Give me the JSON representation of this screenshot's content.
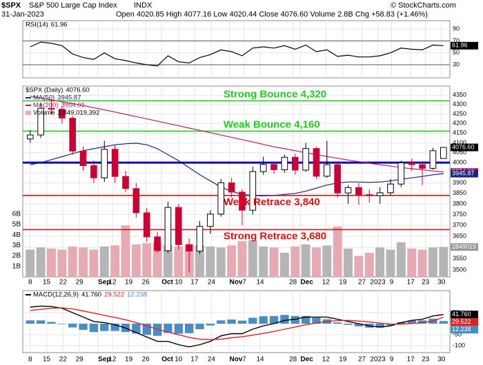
{
  "header": {
    "symbol": "$SPX",
    "name": "S&P 500 Large Cap Index",
    "exchange": "INDX",
    "date": "31-Jan-2023",
    "quote": "Open 4020.85   High 4077.16   Low 4020.44   Close 4076.60   Volume 2.8B   Chg +58.83 (+1.46%)",
    "copyright": "© StockCharts.com"
  },
  "chart_data": [
    {
      "type": "line",
      "grid": true,
      "ylim": [
        8,
        104
      ],
      "yticks": [
        30,
        50,
        70,
        90
      ],
      "ref_lines": [
        30,
        70
      ],
      "series": [
        {
          "name": "RSI(14)",
          "color": "#000000",
          "last_label": "61.96",
          "values": [
            60,
            68,
            66,
            62,
            48,
            42,
            39,
            50,
            40,
            37,
            33,
            30,
            28,
            45,
            35,
            33,
            42,
            47,
            55,
            52,
            45,
            58,
            60,
            58,
            62,
            56,
            63,
            52,
            55,
            44,
            46,
            43,
            43,
            45,
            50,
            58,
            56,
            55,
            63,
            61.96
          ]
        }
      ]
    },
    {
      "type": "candlestick",
      "name": "$SPX (Daily)",
      "last_label": "4076.60",
      "grid": true,
      "log_y": true,
      "up_color": "#000000",
      "down_color": "#cc0033",
      "xlim": [
        -0.7,
        39.6
      ],
      "xticks": [
        {
          "value": 0,
          "label": "8"
        },
        {
          "value": 1.55,
          "label": "15"
        },
        {
          "value": 3.1,
          "label": "22"
        },
        {
          "value": 4.65,
          "label": "29"
        },
        {
          "value": 6.4,
          "label": "Sep"
        },
        {
          "value": 7.76,
          "label": "12"
        },
        {
          "value": 9.3,
          "label": "19"
        },
        {
          "value": 10.9,
          "label": "26"
        },
        {
          "value": 12.4,
          "label": "Oct"
        },
        {
          "value": 14,
          "label": "10"
        },
        {
          "value": 15.5,
          "label": "17"
        },
        {
          "value": 17.1,
          "label": "24"
        },
        {
          "value": 18.8,
          "label": "Nov"
        },
        {
          "value": 20.2,
          "label": "7"
        },
        {
          "value": 21.7,
          "label": "14"
        },
        {
          "value": 24.8,
          "label": "28"
        },
        {
          "value": 25.5,
          "label": "Dec"
        },
        {
          "value": 27.9,
          "label": "12"
        },
        {
          "value": 29.5,
          "label": "19"
        },
        {
          "value": 31.3,
          "label": "27"
        },
        {
          "value": 32.8,
          "label": "2023"
        },
        {
          "value": 34.1,
          "label": "9"
        },
        {
          "value": 35.9,
          "label": "17"
        },
        {
          "value": 37.3,
          "label": "23"
        },
        {
          "value": 38.8,
          "label": "30"
        }
      ],
      "ylim": [
        3470,
        4400
      ],
      "yticks": [
        3500,
        3550,
        3600,
        3650,
        3700,
        3750,
        3800,
        3850,
        3900,
        3950,
        4000,
        4050,
        4100,
        4150,
        4200,
        4250,
        4300,
        4350
      ],
      "open": [
        4120,
        4140,
        4280,
        4275,
        4228,
        4058,
        3985,
        3925,
        4067,
        3932,
        3873,
        3758,
        3647,
        3585,
        3783,
        3612,
        3583,
        3695,
        3752,
        3901,
        3856,
        3770,
        3956,
        3991,
        3965,
        4027,
        3963,
        4071,
        3933,
        3990,
        3852,
        3878,
        3844,
        3839,
        3853,
        3895,
        3999,
        3990,
        3972,
        4020.85
      ],
      "high": [
        4165,
        4305,
        4325,
        4290,
        4240,
        4080,
        4010,
        4110,
        4090,
        3960,
        3900,
        3780,
        3670,
        3810,
        3800,
        3640,
        3720,
        3770,
        3920,
        3925,
        3870,
        3980,
        4030,
        4005,
        4040,
        4045,
        4100,
        4080,
        4110,
        4000,
        3890,
        3900,
        3870,
        3880,
        3920,
        4010,
        4020,
        4000,
        4075,
        4077.16
      ],
      "low": [
        4100,
        4125,
        4250,
        4200,
        4040,
        3960,
        3900,
        3905,
        3900,
        3855,
        3735,
        3625,
        3575,
        3575,
        3590,
        3490,
        3570,
        3660,
        3740,
        3830,
        3700,
        3750,
        3940,
        3945,
        3950,
        3940,
        3955,
        3920,
        3925,
        3830,
        3800,
        3795,
        3805,
        3800,
        3840,
        3880,
        3960,
        3890,
        3965,
        4020.44
      ],
      "close": [
        4140,
        4280,
        4275,
        4228,
        4058,
        3985,
        3925,
        4067,
        3932,
        3873,
        3758,
        3647,
        3585,
        3783,
        3612,
        3583,
        3695,
        3752,
        3901,
        3856,
        3770,
        3956,
        3991,
        3965,
        4027,
        3963,
        4071,
        3933,
        3990,
        3852,
        3878,
        3844,
        3839,
        3853,
        3895,
        3999,
        3990,
        3972,
        4060,
        4076.6
      ],
      "series": [
        {
          "name": "MA(50)",
          "color": "#1a237e",
          "last_label": "3945.87",
          "values": [
            3990,
            4000,
            4015,
            4030,
            4045,
            4060,
            4070,
            4080,
            4090,
            4095,
            4098,
            4090,
            4070,
            4040,
            4010,
            3975,
            3940,
            3910,
            3880,
            3860,
            3845,
            3840,
            3838,
            3840,
            3845,
            3850,
            3860,
            3875,
            3890,
            3900,
            3905,
            3905,
            3903,
            3905,
            3910,
            3918,
            3925,
            3932,
            3940,
            3945.87
          ]
        },
        {
          "name": "MA(200)",
          "color": "#c2185b",
          "last_label": "3954.01",
          "values": [
            4345,
            4335,
            4325,
            4315,
            4305,
            4295,
            4283,
            4272,
            4260,
            4248,
            4236,
            4224,
            4212,
            4200,
            4188,
            4176,
            4164,
            4152,
            4140,
            4128,
            4116,
            4104,
            4092,
            4080,
            4070,
            4060,
            4050,
            4040,
            4031,
            4022,
            4013,
            4005,
            3997,
            3990,
            3983,
            3976,
            3970,
            3965,
            3959,
            3954.01
          ]
        }
      ],
      "volume": {
        "name": "Volume",
        "legend_value": "2,849,019,392",
        "last_label": "2849019",
        "up_color": "#b5b5b5",
        "down_color": "#e6aab3",
        "ylim": [
          0,
          18.2
        ],
        "yticks": [
          {
            "value": 1,
            "label": "1B"
          },
          {
            "value": 2,
            "label": "2B"
          },
          {
            "value": 3,
            "label": "3B"
          },
          {
            "value": 4,
            "label": "4B"
          },
          {
            "value": 5,
            "label": "5B"
          },
          {
            "value": 6,
            "label": "6B"
          }
        ],
        "values": [
          2.6,
          2.8,
          2.7,
          2.6,
          2.9,
          2.8,
          2.6,
          2.9,
          3.0,
          4.9,
          3.1,
          3.2,
          3.3,
          3.0,
          2.9,
          3.1,
          3.0,
          2.9,
          2.8,
          3.0,
          3.4,
          3.5,
          2.9,
          2.8,
          2.3,
          2.9,
          3.1,
          2.8,
          3.0,
          4.8,
          2.7,
          2.0,
          2.3,
          2.8,
          2.6,
          3.3,
          2.7,
          2.6,
          2.8,
          2.849
        ]
      },
      "annotations": [
        {
          "text": "Strong Bounce 4,320",
          "value": 4320,
          "color": "#22cc22"
        },
        {
          "text": "Weak Bounce 4,160",
          "value": 4160,
          "color": "#22cc22"
        },
        {
          "value": 4000,
          "color": "#0000cc"
        },
        {
          "text": "Weak Retrace 3,840",
          "value": 3840,
          "color": "#dd1111"
        },
        {
          "text": "Strong Retrace 3,680",
          "value": 3680,
          "color": "#dd1111"
        }
      ]
    },
    {
      "type": "macd",
      "name": "MACD(12,26,9)",
      "grid": true,
      "ylim": [
        -131,
        150
      ],
      "yticks": [
        -100,
        -50,
        0,
        50
      ],
      "series": [
        {
          "name": "MACD",
          "color": "#000000",
          "last_label": "41.760",
          "values": [
            75,
            80,
            78,
            70,
            50,
            30,
            10,
            5,
            -5,
            -20,
            -40,
            -60,
            -80,
            -80,
            -95,
            -105,
            -95,
            -80,
            -55,
            -45,
            -45,
            -25,
            -10,
            0,
            15,
            20,
            30,
            30,
            30,
            20,
            10,
            0,
            -10,
            -15,
            -10,
            5,
            15,
            20,
            35,
            41.76
          ]
        },
        {
          "name": "Signal",
          "color": "#dd2222",
          "last_label": "29.522",
          "values": [
            60,
            65,
            70,
            72,
            67,
            58,
            48,
            38,
            28,
            18,
            5,
            -10,
            -25,
            -38,
            -50,
            -62,
            -70,
            -72,
            -70,
            -64,
            -59,
            -52,
            -44,
            -35,
            -25,
            -15,
            -5,
            3,
            10,
            14,
            15,
            12,
            8,
            3,
            -2,
            -2,
            1,
            5,
            12,
            29.522
          ]
        }
      ],
      "histogram": {
        "name": "Histogram",
        "color": "#4a8cc4",
        "last_label": "12.238",
        "values": [
          15,
          15,
          8,
          -2,
          -17,
          -28,
          -38,
          -33,
          -33,
          -38,
          -45,
          -50,
          -55,
          -42,
          -45,
          -43,
          -25,
          -8,
          15,
          19,
          14,
          27,
          34,
          35,
          40,
          35,
          35,
          27,
          20,
          6,
          -5,
          -12,
          -18,
          -18,
          -8,
          7,
          14,
          15,
          23,
          12.238
        ]
      }
    }
  ]
}
